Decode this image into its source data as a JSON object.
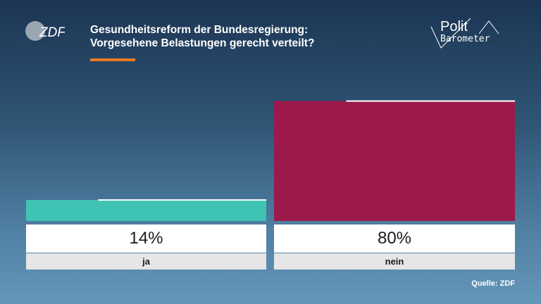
{
  "header": {
    "brand": "ZDF",
    "title_line1": "Gesundheitsreform der Bundesregierung:",
    "title_line2": "Vorgesehene Belastungen gerecht verteilt?",
    "accent_color": "#f07a23"
  },
  "polit_logo": {
    "line1": "Polit",
    "line2": "Barometer"
  },
  "chart_data": {
    "type": "bar",
    "categories": [
      "ja",
      "nein"
    ],
    "values": [
      14,
      80
    ],
    "value_labels": [
      "14%",
      "80%"
    ],
    "colors": [
      "#3fc4b3",
      "#9b1a4b"
    ],
    "previous_values": [
      14,
      80
    ],
    "ylim": [
      0,
      100
    ]
  },
  "source": "Quelle: ZDF"
}
